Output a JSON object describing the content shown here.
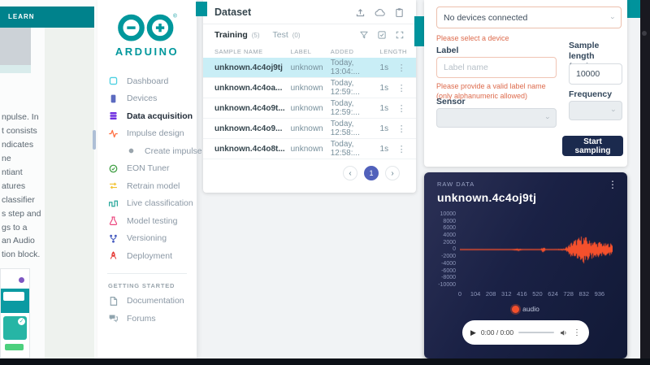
{
  "colors": {
    "brand_teal": "#00979c",
    "error_orange": "#dd6b4d",
    "button_navy": "#1b2a4e",
    "waveform_orange": "#f4502c",
    "row_highlight": "#c9eef6",
    "pagination_active": "#5161bb"
  },
  "background": {
    "learn_label": "LEARN",
    "text_lines_1": [
      "npulse. In",
      "t consists",
      "ndicates",
      "ne",
      "ntiant",
      "atures",
      "classifier",
      "s step and",
      "gs to a"
    ],
    "text_lines_2": [
      "an Audio",
      "tion block."
    ]
  },
  "sidebar": {
    "brand": "ARDUINO",
    "items": [
      {
        "label": "Dashboard"
      },
      {
        "label": "Devices"
      },
      {
        "label": "Data acquisition"
      },
      {
        "label": "Impulse design"
      },
      {
        "label": "Create impulse"
      },
      {
        "label": "EON Tuner"
      },
      {
        "label": "Retrain model"
      },
      {
        "label": "Live classification"
      },
      {
        "label": "Model testing"
      },
      {
        "label": "Versioning"
      },
      {
        "label": "Deployment"
      }
    ],
    "section_label": "GETTING STARTED",
    "bottom_items": [
      {
        "label": "Documentation"
      },
      {
        "label": "Forums"
      }
    ]
  },
  "dataset": {
    "title": "Dataset",
    "tabs": [
      {
        "label": "Training",
        "count": "(5)"
      },
      {
        "label": "Test",
        "count": "(0)"
      }
    ],
    "columns": [
      "SAMPLE NAME",
      "LABEL",
      "ADDED",
      "LENGTH"
    ],
    "rows": [
      {
        "name": "unknown.4c4oj9tj",
        "label": "unknown",
        "added": "Today, 13:04:...",
        "length": "1s",
        "menu": "⋮"
      },
      {
        "name": "unknown.4c4oa...",
        "label": "unknown",
        "added": "Today, 12:59:...",
        "length": "1s",
        "menu": "⋮"
      },
      {
        "name": "unknown.4c4o9t...",
        "label": "unknown",
        "added": "Today, 12:59:...",
        "length": "1s",
        "menu": "⋮"
      },
      {
        "name": "unknown.4c4o9...",
        "label": "unknown",
        "added": "Today, 12:58:...",
        "length": "1s",
        "menu": "⋮"
      },
      {
        "name": "unknown.4c4o8t...",
        "label": "unknown",
        "added": "Today, 12:58:...",
        "length": "1s",
        "menu": "⋮"
      }
    ],
    "pagination": {
      "prev": "‹",
      "current": "1",
      "next": "›"
    }
  },
  "form": {
    "device_select_value": "No devices connected",
    "device_error": "Please select a device",
    "label_label": "Label",
    "label_placeholder": "Label name",
    "label_error": "Please provide a valid label name (only alphanumeric allowed)",
    "sample_length_label": "Sample length",
    "sample_length_unit": "(ms.)",
    "sample_length_value": "10000",
    "sensor_label": "Sensor",
    "frequency_label": "Frequency",
    "start_button_label": "Start sampling"
  },
  "raw_data": {
    "panel_label": "RAW DATA",
    "title": "unknown.4c4oj9tj",
    "menu": "⋮",
    "player_time": "0:00 / 0:00",
    "play_glyph": "▶"
  },
  "chart_data": {
    "type": "line",
    "title": "unknown.4c4oj9tj",
    "xlim": [
      0,
      1024
    ],
    "ylim": [
      -10000,
      10000
    ],
    "x_ticks": [
      0,
      104,
      208,
      312,
      416,
      520,
      624,
      728,
      832,
      936
    ],
    "y_ticks": [
      10000,
      8000,
      6000,
      4000,
      2000,
      0,
      -2000,
      -4000,
      -6000,
      -8000,
      -10000
    ],
    "grid": false,
    "legend_position": "bottom",
    "series": [
      {
        "name": "audio",
        "color": "#f4502c",
        "envelope_x": [
          0,
          340,
          390,
          410,
          430,
          540,
          555,
          575,
          650,
          700,
          730,
          760,
          790,
          820,
          850,
          870,
          890,
          915,
          940,
          965,
          1000,
          1024
        ],
        "envelope_amp": [
          140,
          140,
          480,
          220,
          140,
          150,
          950,
          160,
          180,
          320,
          1500,
          2700,
          3300,
          4100,
          3400,
          2500,
          2900,
          2000,
          2400,
          1700,
          1900,
          1600
        ]
      }
    ]
  }
}
